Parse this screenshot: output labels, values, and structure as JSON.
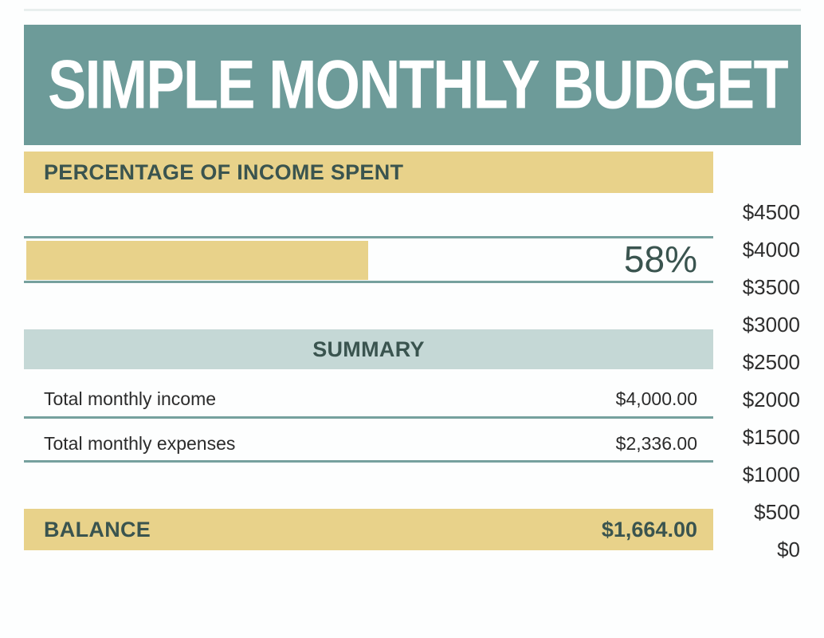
{
  "page": {
    "title": "SIMPLE MONTHLY BUDGET"
  },
  "percent_section": {
    "heading": "PERCENTAGE OF INCOME SPENT",
    "percent_label": "58%"
  },
  "summary": {
    "heading": "SUMMARY",
    "rows": [
      {
        "label": "Total monthly income",
        "value": "$4,000.00"
      },
      {
        "label": "Total monthly expenses",
        "value": "$2,336.00"
      }
    ],
    "balance": {
      "label": "BALANCE",
      "value": "$1,664.00"
    }
  },
  "axis": {
    "ticks": [
      "$4500",
      "$4000",
      "$3500",
      "$3000",
      "$2500",
      "$2000",
      "$1500",
      "$1000",
      "$500",
      "$0"
    ]
  },
  "colors": {
    "header_teal": "#6d9b99",
    "gold": "#e8d28a",
    "pale_teal": "#c5d8d6",
    "dark_teal_text": "#3a544f",
    "rule_teal": "#76a19e",
    "body_text": "#2b2b2b"
  },
  "chart_data": [
    {
      "type": "bar",
      "orientation": "horizontal",
      "title": "PERCENTAGE OF INCOME SPENT",
      "categories": [
        "Percentage of income spent"
      ],
      "values": [
        58
      ],
      "data_labels": [
        "58%"
      ],
      "fill_fraction_visible": 0.415,
      "legend": "off",
      "grid": "off"
    },
    {
      "type": "bar",
      "title": "",
      "ytick_labels": [
        "$4500",
        "$4000",
        "$3500",
        "$3000",
        "$2500",
        "$2000",
        "$1500",
        "$1000",
        "$500",
        "$0"
      ],
      "ylim": [
        0,
        4500
      ],
      "legend": "off",
      "visible_portion": "y-axis tick labels only, chart cropped at right edge"
    }
  ]
}
